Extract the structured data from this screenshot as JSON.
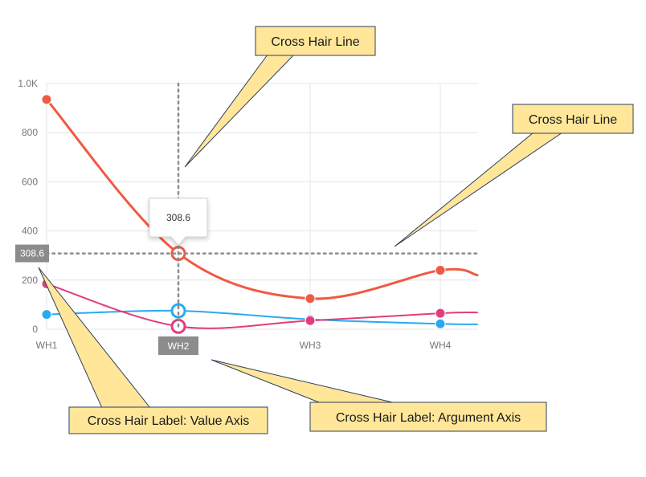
{
  "chart_data": {
    "type": "line",
    "categories": [
      "WH1",
      "WH2",
      "WH3",
      "WH4"
    ],
    "ylim": [
      0,
      1000
    ],
    "yticks": [
      {
        "value": 0,
        "label": "0"
      },
      {
        "value": 200,
        "label": "200"
      },
      {
        "value": 400,
        "label": "400"
      },
      {
        "value": 600,
        "label": "600"
      },
      {
        "value": 800,
        "label": "800"
      },
      {
        "value": 1000,
        "label": "1.0K"
      }
    ],
    "grid": true,
    "series": [
      {
        "color": "#ef5a43",
        "values": [
          935,
          308.6,
          125,
          240
        ]
      },
      {
        "color": "#29aaf0",
        "values": [
          60,
          75,
          40,
          22
        ]
      },
      {
        "color": "#e23c7d",
        "values": [
          185,
          12,
          35,
          65
        ]
      }
    ],
    "crosshair": {
      "category": "WH2",
      "value": 308.6,
      "value_label": "308.6",
      "argument_label": "WH2",
      "tooltip": "308.6"
    }
  },
  "callouts": {
    "crosshair_line_top": "Cross Hair Line",
    "crosshair_line_right": "Cross Hair Line",
    "value_axis_label": "Cross Hair Label: Value Axis",
    "argument_axis_label": "Cross Hair Label: Argument Axis"
  },
  "colors": {
    "callout_fill": "#ffe699",
    "callout_border": "#2f3f5f",
    "grid": "#e4e4e4",
    "crosshair": "#8c8c8c",
    "crosshair_label_bg": "#8c8c8c"
  }
}
